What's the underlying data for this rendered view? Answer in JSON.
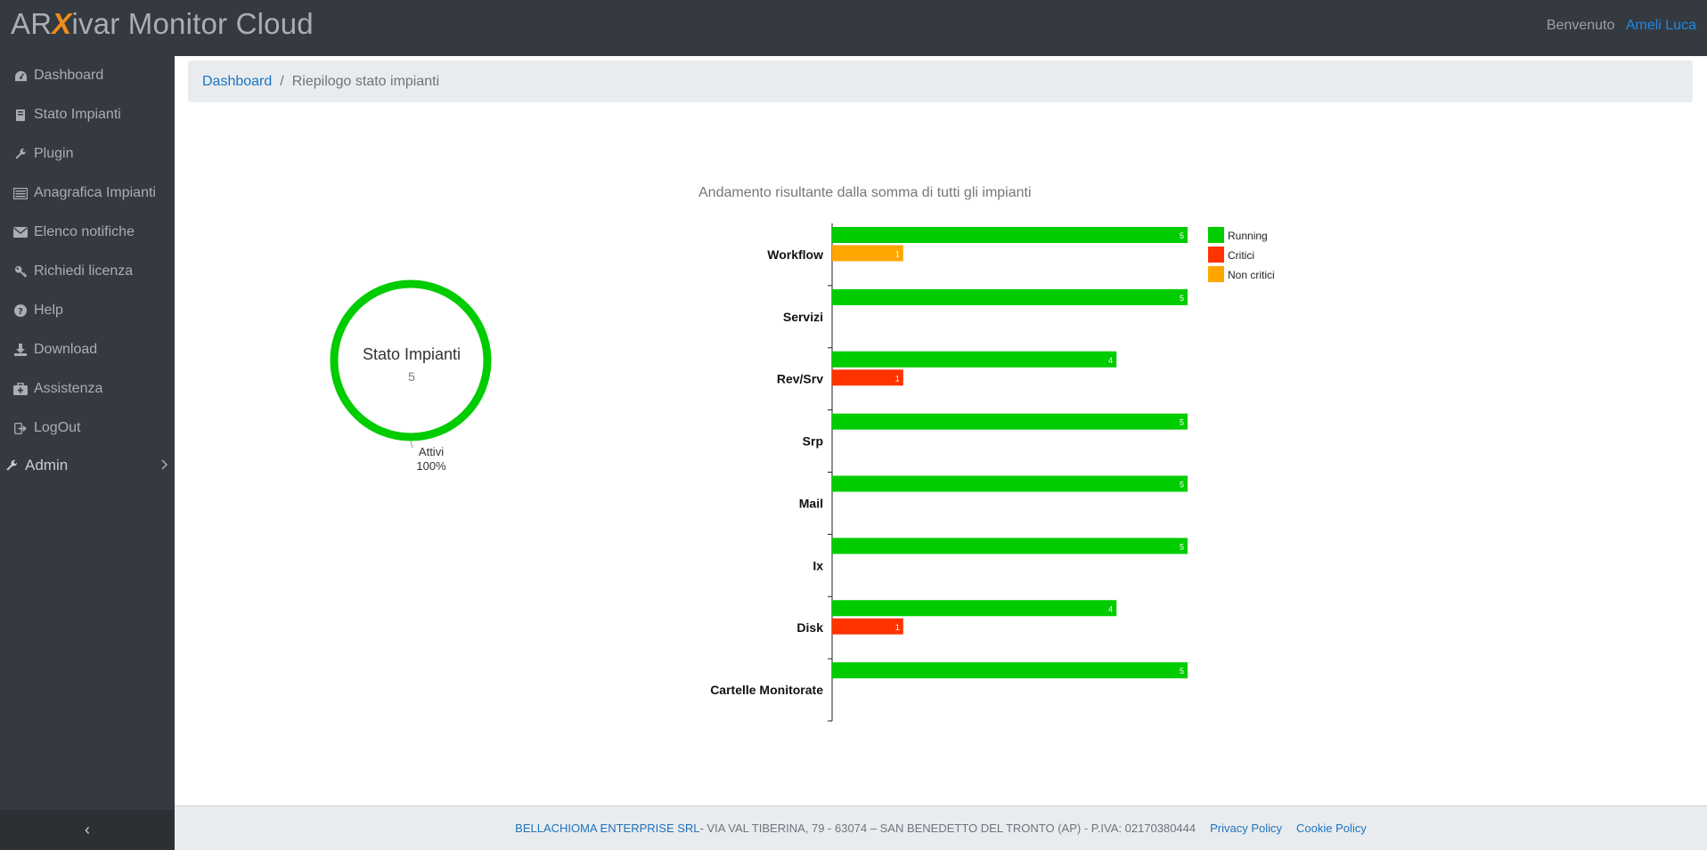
{
  "brand": {
    "pre": "AR",
    "x": "X",
    "post": "ivar Monitor Cloud"
  },
  "header": {
    "welcome": "Benvenuto",
    "user": "Ameli Luca"
  },
  "sidebar": {
    "items": [
      {
        "label": "Dashboard",
        "icon": "dashboard-icon"
      },
      {
        "label": "Stato Impianti",
        "icon": "book-icon"
      },
      {
        "label": "Plugin",
        "icon": "wrench-icon"
      },
      {
        "label": "Anagrafica Impianti",
        "icon": "list-icon"
      },
      {
        "label": "Elenco notifiche",
        "icon": "envelope-icon"
      },
      {
        "label": "Richiedi licenza",
        "icon": "key-icon"
      },
      {
        "label": "Help",
        "icon": "question-icon"
      },
      {
        "label": "Download",
        "icon": "download-icon"
      },
      {
        "label": "Assistenza",
        "icon": "medkit-icon"
      },
      {
        "label": "LogOut",
        "icon": "signout-icon"
      }
    ],
    "admin": {
      "label": "Admin",
      "icon": "wrench-icon"
    },
    "toggle": "‹"
  },
  "breadcrumb": {
    "home": "Dashboard",
    "sep": "/",
    "current": "Riepilogo stato impianti"
  },
  "donut": {
    "title": "Stato Impianti",
    "value": "5",
    "label": "Attivi",
    "percent": "100%",
    "color": "#00cc00",
    "fraction": 1.0
  },
  "chart_data": {
    "type": "bar",
    "orientation": "horizontal",
    "title": "Andamento risultante dalla somma di tutti gli impianti",
    "xlim": [
      0,
      5
    ],
    "categories": [
      "Workflow",
      "Servizi",
      "Rev/Srv",
      "Srp",
      "Mail",
      "Ix",
      "Disk",
      "Cartelle Monitorate"
    ],
    "series": [
      {
        "name": "Running",
        "color": "#00cc00",
        "values": [
          5,
          5,
          4,
          5,
          5,
          5,
          4,
          5
        ]
      },
      {
        "name": "Critici",
        "color": "#ff3300",
        "values": [
          0,
          0,
          1,
          0,
          0,
          0,
          1,
          0
        ]
      },
      {
        "name": "Non critici",
        "color": "#ffa500",
        "values": [
          1,
          0,
          0,
          0,
          0,
          0,
          0,
          0
        ]
      }
    ],
    "legend": "top-right",
    "grid": false
  },
  "footer": {
    "company": "BELLACHIOMA ENTERPRISE SRL",
    "address": " - VIA VAL TIBERINA, 79 - 63074 – SAN BENEDETTO DEL TRONTO (AP) - P.IVA: 02170380444",
    "privacy": "Privacy Policy",
    "cookie": "Cookie Policy"
  }
}
